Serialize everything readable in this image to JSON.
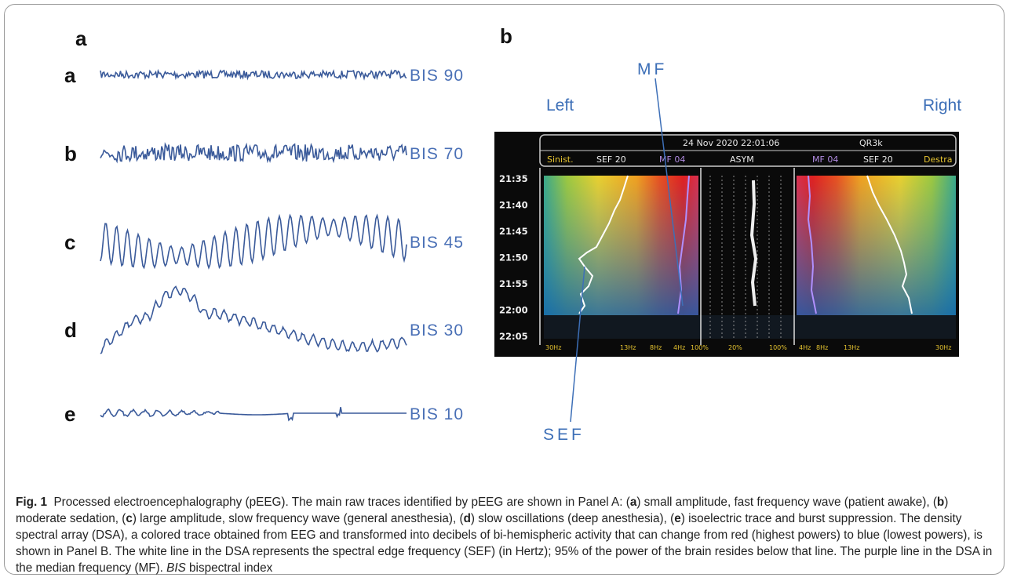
{
  "panel_a": {
    "label": "a",
    "traces": [
      {
        "letter": "a",
        "label": "BIS 90"
      },
      {
        "letter": "b",
        "label": "BIS 70"
      },
      {
        "letter": "c",
        "label": "BIS 45"
      },
      {
        "letter": "d",
        "label": "BIS 30"
      },
      {
        "letter": "e",
        "label": "BIS 10"
      }
    ]
  },
  "panel_b": {
    "label": "b",
    "mf_label": "MF",
    "sef_label": "SEF",
    "left_label": "Left",
    "right_label": "Right",
    "monitor": {
      "datetime": "24 Nov 2020  22:01:06",
      "mode": "QR3k",
      "header": [
        "Sinist.",
        "SEF 20",
        "MF 04",
        "ASYM",
        "MF 04",
        "SEF 20",
        "Destra"
      ],
      "times": [
        "21:35",
        "21:40",
        "21:45",
        "21:50",
        "21:55",
        "22:00",
        "22:05"
      ],
      "footer": [
        "30Hz",
        "13Hz",
        "8Hz",
        "4Hz",
        "100%",
        "20%",
        "100%",
        "4Hz",
        "8Hz",
        "13Hz",
        "30Hz"
      ]
    }
  },
  "caption": {
    "label": "Fig. 1",
    "parts": [
      "Processed electroencephalography (pEEG). The main raw traces identified by pEEG are shown in Panel A: (",
      "a",
      ") small amplitude, fast frequency wave (patient awake), (",
      "b",
      ") moderate sedation, (",
      "c",
      ") large amplitude, slow frequency wave (general anesthesia), (",
      "d",
      ") slow oscillations (deep anesthesia), (",
      "e",
      ") isoelectric trace and burst suppression. The density spectral array (DSA), a colored trace obtained from EEG and transformed into decibels of bi-hemispheric activity that can change from red (highest powers) to blue (lowest powers), is shown in Panel B. The white line in the DSA represents the spectral edge frequency (SEF) (in Hertz); 95% of the power of the brain resides below that line. The purple line in the DSA in the median frequency (MF). ",
      "BIS",
      " bispectral index"
    ]
  }
}
